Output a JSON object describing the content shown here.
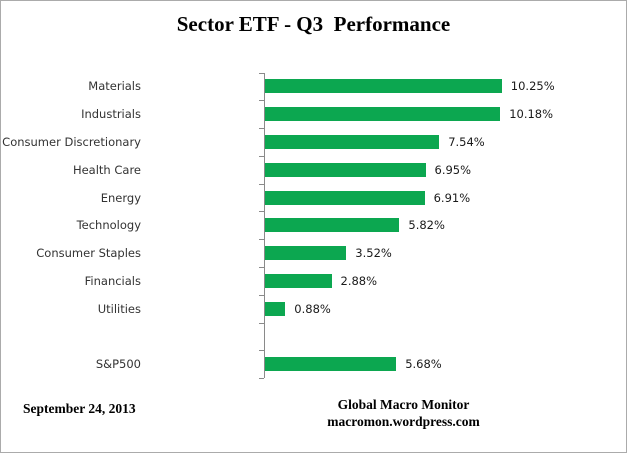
{
  "title": "Sector ETF - Q3  Performance",
  "chart_data": {
    "type": "bar",
    "orientation": "horizontal",
    "title": "Sector ETF - Q3  Performance",
    "categories": [
      "Materials",
      "Industrials",
      "Consumer Discretionary",
      "Health Care",
      "Energy",
      "Technology",
      "Consumer Staples",
      "Financials",
      "Utilities",
      "S&P500"
    ],
    "values": [
      10.25,
      10.18,
      7.54,
      6.95,
      6.91,
      5.82,
      3.52,
      2.88,
      0.88,
      5.68
    ],
    "value_labels": [
      "10.25%",
      "10.18%",
      "7.54%",
      "6.95%",
      "6.91%",
      "5.82%",
      "3.52%",
      "2.88%",
      "0.88%",
      "5.68%"
    ],
    "xlabel": "",
    "ylabel": "",
    "xlim": [
      0,
      12
    ],
    "grid": false,
    "legend": null,
    "rows": [
      {
        "label": "Materials",
        "value": 10.25,
        "display": "10.25%"
      },
      {
        "label": "Industrials",
        "value": 10.18,
        "display": "10.18%"
      },
      {
        "label": "Consumer Discretionary",
        "value": 7.54,
        "display": "7.54%"
      },
      {
        "label": "Health Care",
        "value": 6.95,
        "display": "6.95%"
      },
      {
        "label": "Energy",
        "value": 6.91,
        "display": "6.91%"
      },
      {
        "label": "Technology",
        "value": 5.82,
        "display": "5.82%"
      },
      {
        "label": "Consumer Staples",
        "value": 3.52,
        "display": "3.52%"
      },
      {
        "label": "Financials",
        "value": 2.88,
        "display": "2.88%"
      },
      {
        "label": "Utilities",
        "value": 0.88,
        "display": "0.88%"
      },
      {
        "label": "",
        "value": null,
        "display": ""
      },
      {
        "label": "S&P500",
        "value": 5.68,
        "display": "5.68%"
      }
    ]
  },
  "footer": {
    "date": "September 24, 2013",
    "credit_line1": "Global Macro Monitor",
    "credit_line2": "macromon.wordpress.com"
  },
  "colors": {
    "bar": "#0CA750",
    "axis": "#8A8A8A",
    "category_text": "#333333",
    "value_text": "#1A1A1A",
    "border": "#ABABAB"
  }
}
